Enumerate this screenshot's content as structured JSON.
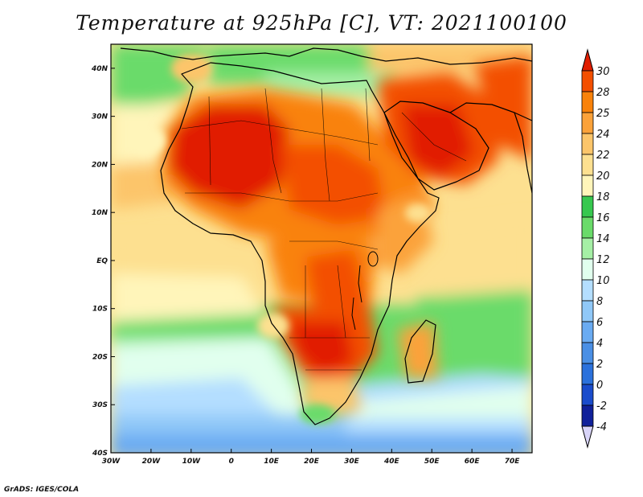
{
  "title": "Temperature at 925hPa [C], VT: 2021100100",
  "credit": "GrADS: IGES/COLA",
  "map": {
    "lon_range": [
      -30,
      75
    ],
    "lat_range": [
      -40,
      45
    ],
    "lat_ticks": [
      {
        "value": 40,
        "label": "40N"
      },
      {
        "value": 30,
        "label": "30N"
      },
      {
        "value": 20,
        "label": "20N"
      },
      {
        "value": 10,
        "label": "10N"
      },
      {
        "value": 0,
        "label": "EQ"
      },
      {
        "value": -10,
        "label": "10S"
      },
      {
        "value": -20,
        "label": "20S"
      },
      {
        "value": -30,
        "label": "30S"
      },
      {
        "value": -40,
        "label": "40S"
      }
    ],
    "lon_ticks": [
      {
        "value": -30,
        "label": "30W"
      },
      {
        "value": -20,
        "label": "20W"
      },
      {
        "value": -10,
        "label": "10W"
      },
      {
        "value": 0,
        "label": "0"
      },
      {
        "value": 10,
        "label": "10E"
      },
      {
        "value": 20,
        "label": "20E"
      },
      {
        "value": 30,
        "label": "30E"
      },
      {
        "value": 40,
        "label": "40E"
      },
      {
        "value": 50,
        "label": "50E"
      },
      {
        "value": 60,
        "label": "60E"
      },
      {
        "value": 70,
        "label": "70E"
      }
    ]
  },
  "legend": {
    "labels": [
      "30",
      "28",
      "25",
      "24",
      "22",
      "20",
      "18",
      "16",
      "14",
      "12",
      "10",
      "8",
      "6",
      "4",
      "2",
      "0",
      "-2",
      "-4"
    ],
    "colors": [
      "#e11e00",
      "#f34f00",
      "#f9820a",
      "#fba23a",
      "#fcc56a",
      "#fde090",
      "#fff5ba",
      "#37c84f",
      "#6adb6a",
      "#a5efa5",
      "#e1ffee",
      "#b4deff",
      "#90c8f8",
      "#6aabf2",
      "#4a8fe5",
      "#2b71dc",
      "#1a4ccc",
      "#10209a",
      "#0c0c60"
    ],
    "top_color": "#e11e00",
    "bottom_color": "#d8d4f8"
  },
  "colors": {
    "coast": "#000000",
    "frame": "#000000"
  }
}
